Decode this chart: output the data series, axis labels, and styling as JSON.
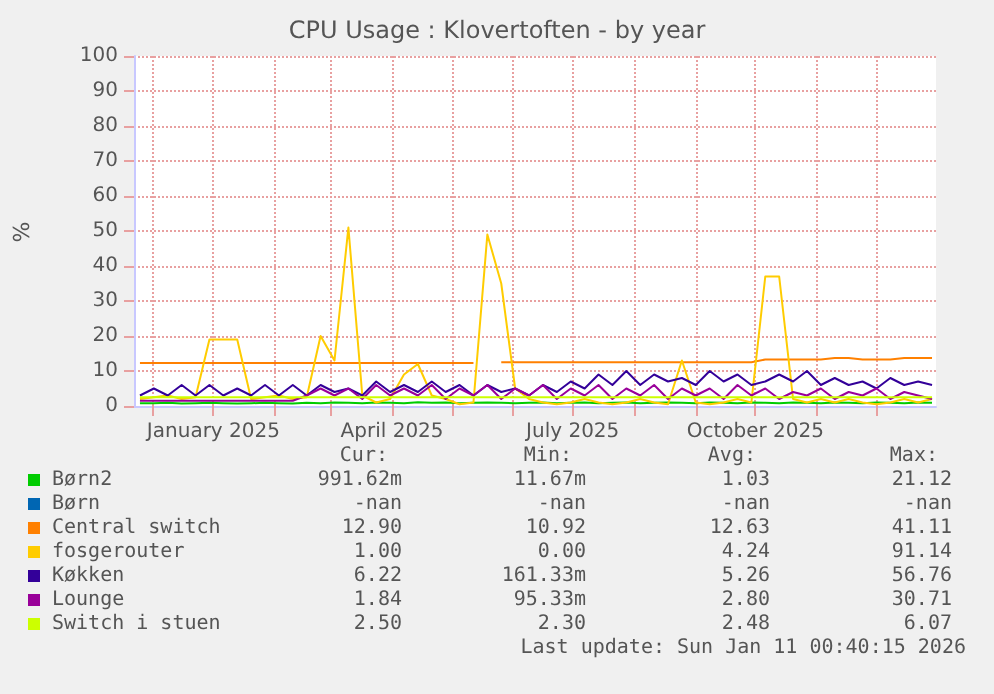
{
  "chart_data": {
    "type": "line",
    "title": "CPU Usage : Klovertoften - by year",
    "ylabel": "%",
    "x": [
      "2024-11-25",
      "2024-12-02",
      "2024-12-09",
      "2024-12-16",
      "2024-12-23",
      "2024-12-30",
      "2025-01-06",
      "2025-01-13",
      "2025-01-20",
      "2025-01-27",
      "2025-02-03",
      "2025-02-10",
      "2025-02-17",
      "2025-02-24",
      "2025-03-03",
      "2025-03-10",
      "2025-03-17",
      "2025-03-24",
      "2025-03-31",
      "2025-04-07",
      "2025-04-14",
      "2025-04-21",
      "2025-04-28",
      "2025-05-05",
      "2025-05-12",
      "2025-05-19",
      "2025-05-26",
      "2025-06-02",
      "2025-06-09",
      "2025-06-16",
      "2025-06-23",
      "2025-06-30",
      "2025-07-07",
      "2025-07-14",
      "2025-07-21",
      "2025-07-28",
      "2025-08-04",
      "2025-08-11",
      "2025-08-18",
      "2025-08-25",
      "2025-09-01",
      "2025-09-08",
      "2025-09-15",
      "2025-09-22",
      "2025-09-29",
      "2025-10-06",
      "2025-10-13",
      "2025-10-20",
      "2025-10-27",
      "2025-11-03",
      "2025-11-10",
      "2025-11-17",
      "2025-11-24",
      "2025-12-01",
      "2025-12-08",
      "2025-12-15",
      "2025-12-22",
      "2025-12-29"
    ],
    "series": [
      {
        "name": "Børn2",
        "color": "#00cc00",
        "values": [
          0.8,
          0.8,
          0.9,
          0.7,
          0.8,
          0.9,
          0.8,
          0.7,
          0.8,
          0.9,
          0.8,
          0.7,
          0.9,
          0.8,
          1,
          0.9,
          0.8,
          1,
          0.9,
          0.8,
          1.1,
          0.9,
          1,
          0.8,
          0.9,
          1,
          0.9,
          0.8,
          0.9,
          1,
          0.8,
          0.9,
          1,
          0.8,
          0.9,
          1,
          0.8,
          0.9,
          1,
          0.9,
          0.8,
          1,
          0.9,
          0.8,
          1,
          0.9,
          0.8,
          1,
          0.9,
          0.8,
          1,
          0.9,
          0.8,
          1,
          0.9,
          0.8,
          1,
          0.9
        ]
      },
      {
        "name": "Børn",
        "color": "#0066b3",
        "values": [
          null,
          null,
          null,
          null,
          null,
          null,
          null,
          null,
          null,
          null,
          null,
          null,
          null,
          null,
          null,
          null,
          null,
          null,
          null,
          null,
          null,
          null,
          null,
          null,
          null,
          null,
          null,
          null,
          null,
          null,
          null,
          null,
          null,
          null,
          null,
          null,
          null,
          null,
          null,
          null,
          null,
          null,
          null,
          null,
          null,
          null,
          null,
          null,
          null,
          null,
          null,
          null,
          null,
          null,
          null,
          null,
          null,
          null
        ]
      },
      {
        "name": "Central switch",
        "color": "#ff8000",
        "values": [
          12.3,
          12.3,
          12.3,
          12.3,
          12.3,
          12.3,
          12.3,
          12.3,
          12.3,
          12.3,
          12.3,
          12.3,
          12.3,
          12.3,
          12.3,
          12.3,
          12.3,
          12.3,
          12.3,
          12.3,
          12.3,
          12.3,
          12.3,
          12.3,
          12.3,
          null,
          12.5,
          12.5,
          12.5,
          12.5,
          12.5,
          12.5,
          12.5,
          12.5,
          12.5,
          12.5,
          12.5,
          12.5,
          12.5,
          12.5,
          12.5,
          12.5,
          12.5,
          12.5,
          12.5,
          13.3,
          13.3,
          13.3,
          13.3,
          13.3,
          13.7,
          13.7,
          13.3,
          13.3,
          13.3,
          13.7,
          13.7,
          13.7
        ]
      },
      {
        "name": "fosgerouter",
        "color": "#ffcc00",
        "values": [
          2,
          2.5,
          3,
          2,
          2.5,
          19,
          19,
          19,
          2,
          2.5,
          3,
          2,
          2.5,
          20,
          13,
          51,
          3,
          1,
          2,
          9,
          12,
          3,
          2,
          0.5,
          1,
          49,
          35,
          5,
          2,
          1,
          0.5,
          1,
          2,
          1,
          0.5,
          1,
          2,
          1,
          0.5,
          13,
          1,
          0.5,
          1,
          2,
          1,
          37,
          37,
          2,
          1,
          2,
          1,
          2,
          1,
          0.5,
          1,
          2,
          1,
          2
        ]
      },
      {
        "name": "Køkken",
        "color": "#330099",
        "values": [
          3,
          5,
          3,
          6,
          3,
          6,
          3,
          5,
          3,
          6,
          3,
          6,
          3,
          6,
          4,
          5,
          3,
          7,
          4,
          6,
          4,
          7,
          4,
          6,
          3,
          6,
          4,
          5,
          3,
          6,
          4,
          7,
          5,
          9,
          6,
          10,
          6,
          9,
          7,
          8,
          6,
          10,
          7,
          9,
          6,
          7,
          9,
          7,
          10,
          6,
          8,
          6,
          7,
          5,
          8,
          6,
          7,
          6
        ]
      },
      {
        "name": "Lounge",
        "color": "#990099",
        "values": [
          1.5,
          1.5,
          1.5,
          1.5,
          1.5,
          1.5,
          1.5,
          1.5,
          1.5,
          1.5,
          1.5,
          1.5,
          3,
          5,
          3,
          5,
          2,
          6,
          3,
          5,
          3,
          6,
          2,
          5,
          3,
          6,
          2,
          5,
          3,
          6,
          2,
          5,
          3,
          6,
          2,
          5,
          3,
          6,
          2,
          5,
          3,
          5,
          2,
          6,
          3,
          5,
          2,
          4,
          3,
          5,
          2,
          4,
          3,
          5,
          2,
          4,
          3,
          2
        ]
      },
      {
        "name": "Switch i stuen",
        "color": "#ccff00",
        "values": [
          2.5,
          2.5,
          2.5,
          2.5,
          2.5,
          2.5,
          2.5,
          2.5,
          2.5,
          2.5,
          2.5,
          2.5,
          2.5,
          2.5,
          2.5,
          2.5,
          2.5,
          2.5,
          2.5,
          2.5,
          2.5,
          2.5,
          2.5,
          2.5,
          2.5,
          2.5,
          2.5,
          2.5,
          2.5,
          2.5,
          2.5,
          2.5,
          2.5,
          2.5,
          2.5,
          2.5,
          2.5,
          2.5,
          2.5,
          2.5,
          2.5,
          2.5,
          2.5,
          2.5,
          2.5,
          2.5,
          2.5,
          2.5,
          2.5,
          2.5,
          2.5,
          2.5,
          2.5,
          2.5,
          2.5,
          2.5,
          2.5,
          2.5
        ]
      }
    ],
    "xlim": [
      "2024-11-22",
      "2025-12-31"
    ],
    "xticks": [
      {
        "value": "2024-12-01",
        "label": null
      },
      {
        "value": "2025-01-01",
        "label": "January 2025"
      },
      {
        "value": "2025-02-01",
        "label": null
      },
      {
        "value": "2025-03-01",
        "label": null
      },
      {
        "value": "2025-04-01",
        "label": "April 2025"
      },
      {
        "value": "2025-05-01",
        "label": null
      },
      {
        "value": "2025-06-01",
        "label": null
      },
      {
        "value": "2025-07-01",
        "label": "July 2025"
      },
      {
        "value": "2025-08-01",
        "label": null
      },
      {
        "value": "2025-09-01",
        "label": null
      },
      {
        "value": "2025-10-01",
        "label": "October 2025"
      },
      {
        "value": "2025-11-01",
        "label": null
      },
      {
        "value": "2025-12-01",
        "label": null
      }
    ],
    "ylim": [
      0,
      100
    ],
    "yticks": [
      0,
      10,
      20,
      30,
      40,
      50,
      60,
      70,
      80,
      90,
      100
    ],
    "grid": true,
    "legend": "bottom",
    "annotations": [
      "Cur:",
      "Min:",
      "Avg:",
      "Max:",
      "991.62m",
      "11.67m",
      "1.03",
      "21.12",
      "-nan",
      "-nan",
      "-nan",
      "-nan",
      "12.90",
      "10.92",
      "12.63",
      "41.11",
      "1.00",
      "0.00",
      "4.24",
      "91.14",
      "6.22",
      "161.33m",
      "5.26",
      "56.76",
      "1.84",
      "95.33m",
      "2.80",
      "30.71",
      "2.50",
      "2.30",
      "2.48",
      "6.07",
      "Last update: Sun Jan 11 00:40:15 2026"
    ]
  }
}
